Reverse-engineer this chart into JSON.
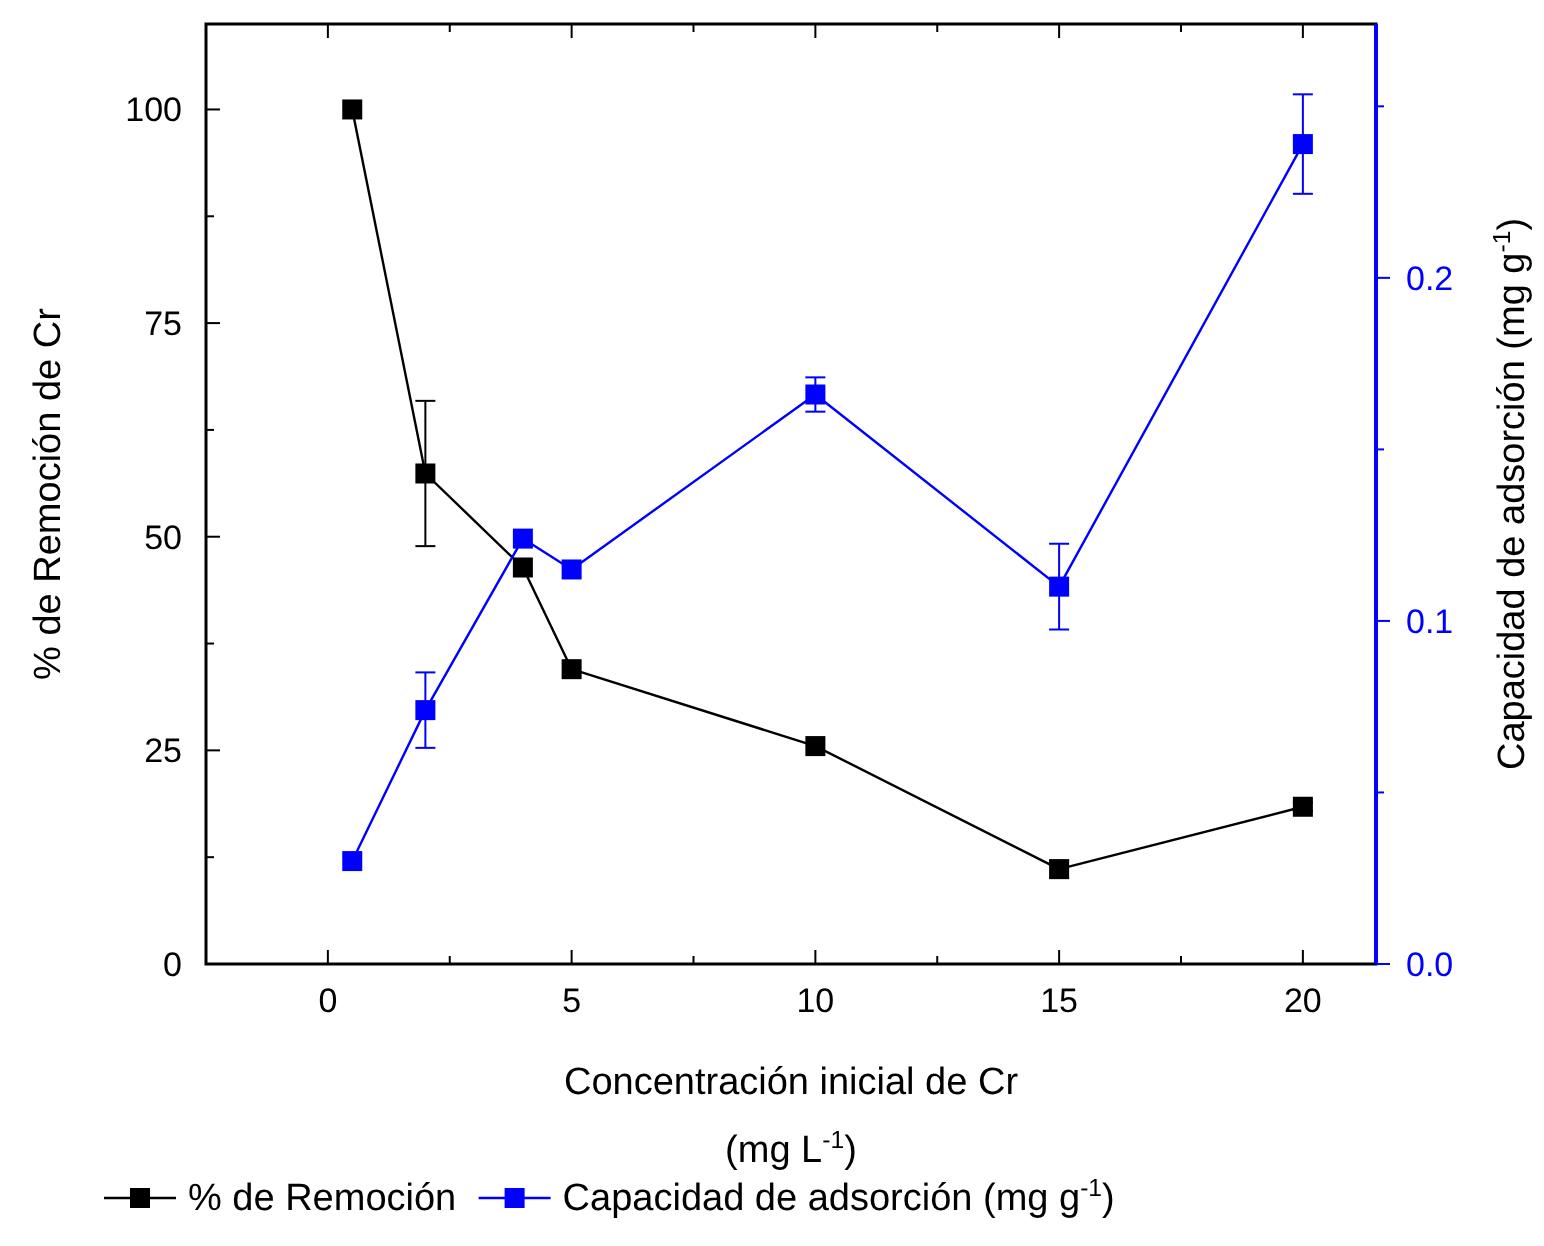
{
  "chart_data": {
    "type": "line",
    "xlabel": "Concentración inicial de Cr\n(mg L$^{-1}$)",
    "ylabel": "% de Remoción de Cr",
    "y2label": "Capacidad de adsorción (mg g$^{-1}$)",
    "x": [
      0.5,
      2,
      4,
      5,
      10,
      15,
      20
    ],
    "series": [
      {
        "name": "% de Remoción",
        "color": "#000000",
        "values": [
          100,
          57.4,
          46.4,
          34.5,
          25.5,
          11.1,
          18.4
        ],
        "errors": [
          null,
          8.5,
          null,
          null,
          null,
          1,
          0.5
        ]
      },
      {
        "name": "Capacidad de adsorción (mg g$^{-1}$)",
        "color": "#0000ff",
        "axis": "y2",
        "values": [
          0.03,
          0.074,
          0.124,
          0.115,
          0.166,
          0.11,
          0.239
        ],
        "errors": [
          null,
          0.011,
          null,
          null,
          0.005,
          0.0125,
          0.0145
        ]
      }
    ],
    "xlim": [
      -2.5,
      21.5
    ],
    "xticks": [
      0,
      {
        "value": 2.5,
        "label": null
      },
      5,
      {
        "value": 7.5,
        "label": null
      },
      10,
      {
        "value": 12.5,
        "label": null
      },
      15,
      {
        "value": 17.5,
        "label": null
      },
      20
    ],
    "ylim": [
      0,
      110
    ],
    "yticks": [
      0,
      {
        "value": 12.5,
        "label": null
      },
      25,
      {
        "value": 37.5,
        "label": null
      },
      50,
      {
        "value": 62.5,
        "label": null
      },
      75,
      {
        "value": 87.5,
        "label": null
      },
      100
    ],
    "y2lim": [
      0,
      0.274
    ],
    "y2ticks": [
      {
        "value": 0,
        "label": "0.0"
      },
      {
        "value": 0.05,
        "label": null
      },
      0.1,
      {
        "value": 0.15,
        "label": null
      },
      0.2,
      {
        "value": 0.25,
        "label": null
      }
    ],
    "marker": "square",
    "line_style": "solid",
    "grid": false,
    "legend": "bottom"
  }
}
